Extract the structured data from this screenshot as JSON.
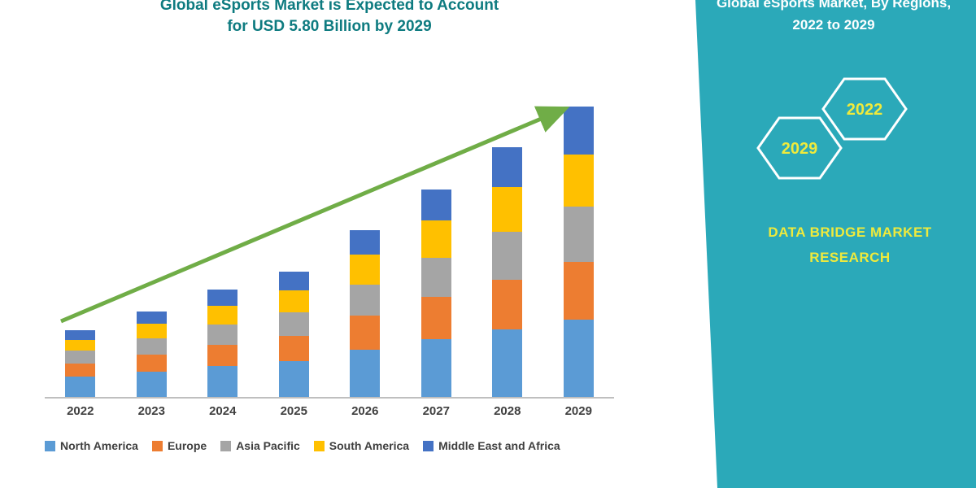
{
  "title": {
    "line1": "Global eSports Market is Expected to Account",
    "line2": "for USD 5.80 Billion by 2029"
  },
  "chart_data": {
    "type": "bar",
    "stacked": true,
    "title": "Global eSports Market is Expected to Account for USD 5.80 Billion by 2029",
    "categories": [
      "2022",
      "2023",
      "2024",
      "2025",
      "2026",
      "2027",
      "2028",
      "2029"
    ],
    "series": [
      {
        "name": "North America",
        "color": "#5B9BD5",
        "values": [
          0.4,
          0.5,
          0.62,
          0.72,
          0.95,
          1.15,
          1.35,
          1.55
        ]
      },
      {
        "name": "Europe",
        "color": "#ED7D31",
        "values": [
          0.27,
          0.35,
          0.43,
          0.5,
          0.67,
          0.85,
          1.0,
          1.15
        ]
      },
      {
        "name": "Asia Pacific",
        "color": "#A5A5A5",
        "values": [
          0.25,
          0.32,
          0.4,
          0.47,
          0.62,
          0.78,
          0.95,
          1.1
        ]
      },
      {
        "name": "South America",
        "color": "#FFC000",
        "values": [
          0.22,
          0.29,
          0.37,
          0.44,
          0.6,
          0.75,
          0.9,
          1.05
        ]
      },
      {
        "name": "Middle East and Africa",
        "color": "#4472C4",
        "values": [
          0.19,
          0.25,
          0.32,
          0.37,
          0.49,
          0.61,
          0.79,
          0.95
        ]
      }
    ],
    "totals": [
      1.33,
      1.71,
      2.14,
      2.5,
      3.33,
      4.14,
      4.99,
      5.8
    ],
    "xlabel": "",
    "ylabel": "",
    "ylim": [
      0,
      6
    ],
    "y_axis_visible": false,
    "grid": false,
    "legend_position": "bottom",
    "trend_arrow": {
      "from_category": "2022",
      "to_category": "2029",
      "color": "#70AD47"
    }
  },
  "side_panel": {
    "heading_line1": "Global eSports Market, By Regions,",
    "heading_line2": "2022 to 2029",
    "hexagon_left_label": "2029",
    "hexagon_right_label": "2022",
    "brand_line1": "DATA BRIDGE MARKET",
    "brand_line2": "RESEARCH",
    "colors": {
      "panel_background": "#2BA9B9",
      "accent_text": "#EFEA3C",
      "heading_text": "#FFFFFF",
      "title_text": "#0E7B80",
      "trend_arrow": "#70AD47"
    }
  }
}
